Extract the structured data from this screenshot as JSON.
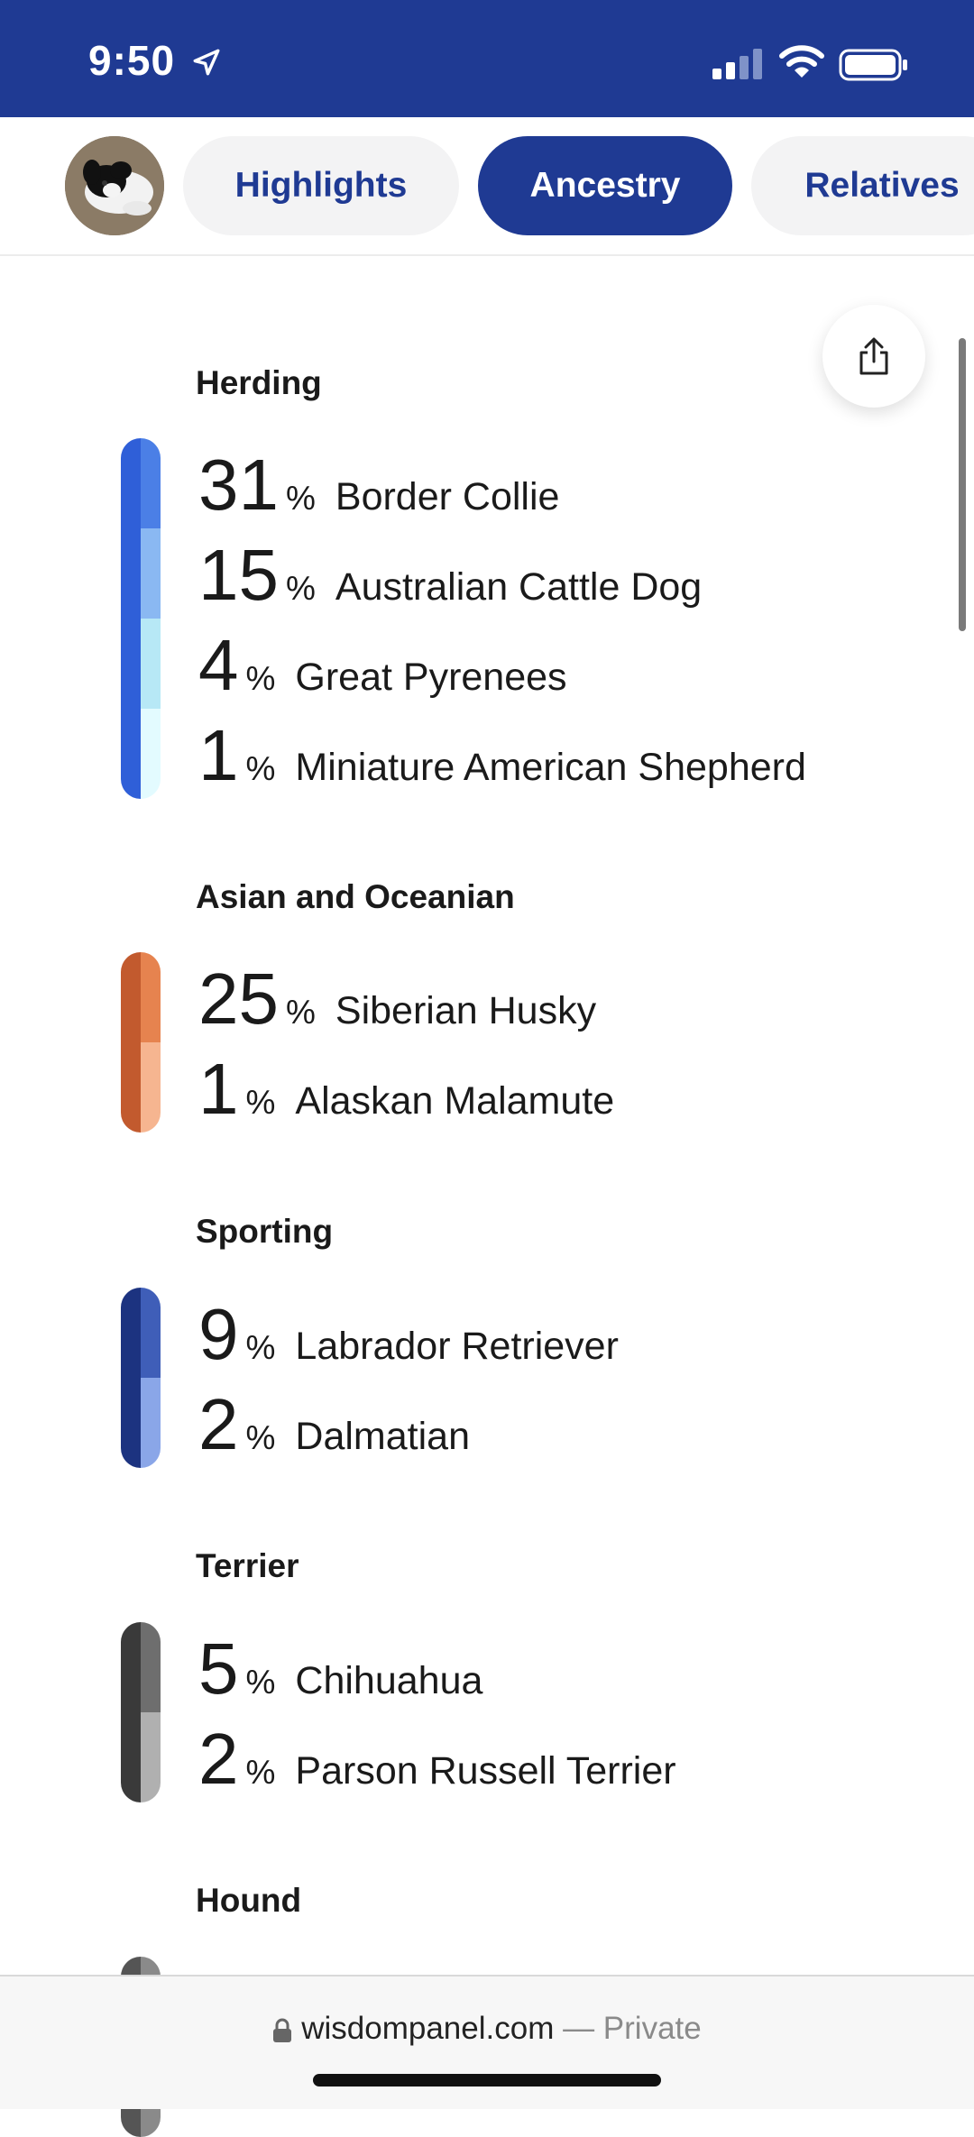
{
  "status_bar": {
    "time": "9:50"
  },
  "nav": {
    "tabs": [
      {
        "label": "Highlights",
        "active": false
      },
      {
        "label": "Ancestry",
        "active": true
      },
      {
        "label": "Relatives",
        "active": false
      }
    ]
  },
  "groups": [
    {
      "title": "Herding",
      "colors": {
        "dark": "#2f5fd8",
        "lights": [
          "#4b7fe6",
          "#8ab8f2",
          "#b7e8f6",
          "#e3fbff"
        ]
      },
      "breeds": [
        {
          "pct": "31",
          "sym": "%",
          "name": "Border Collie"
        },
        {
          "pct": "15",
          "sym": "%",
          "name": "Australian Cattle Dog"
        },
        {
          "pct": "4",
          "sym": "%",
          "name": "Great Pyrenees"
        },
        {
          "pct": "1",
          "sym": "%",
          "name": "Miniature American Shepherd"
        }
      ]
    },
    {
      "title": "Asian and Oceanian",
      "colors": {
        "dark": "#c25a2e",
        "lights": [
          "#e6834f",
          "#f6b590"
        ]
      },
      "breeds": [
        {
          "pct": "25",
          "sym": "%",
          "name": "Siberian Husky"
        },
        {
          "pct": "1",
          "sym": "%",
          "name": "Alaskan Malamute"
        }
      ]
    },
    {
      "title": "Sporting",
      "colors": {
        "dark": "#1c3380",
        "lights": [
          "#3f5eb8",
          "#8aa6e8"
        ]
      },
      "breeds": [
        {
          "pct": "9",
          "sym": "%",
          "name": "Labrador Retriever"
        },
        {
          "pct": "2",
          "sym": "%",
          "name": "Dalmatian"
        }
      ]
    },
    {
      "title": "Terrier",
      "colors": {
        "dark": "#3a3a3a",
        "lights": [
          "#6e6e6e",
          "#b0b0b0"
        ]
      },
      "breeds": [
        {
          "pct": "5",
          "sym": "%",
          "name": "Chihuahua"
        },
        {
          "pct": "2",
          "sym": "%",
          "name": "Parson Russell Terrier"
        }
      ]
    },
    {
      "title": "Hound",
      "colors": {
        "dark": "#555555",
        "lights": [
          "#8a8a8a"
        ]
      },
      "breeds": []
    }
  ],
  "browser": {
    "domain": "wisdompanel.com",
    "suffix": " — Private"
  }
}
